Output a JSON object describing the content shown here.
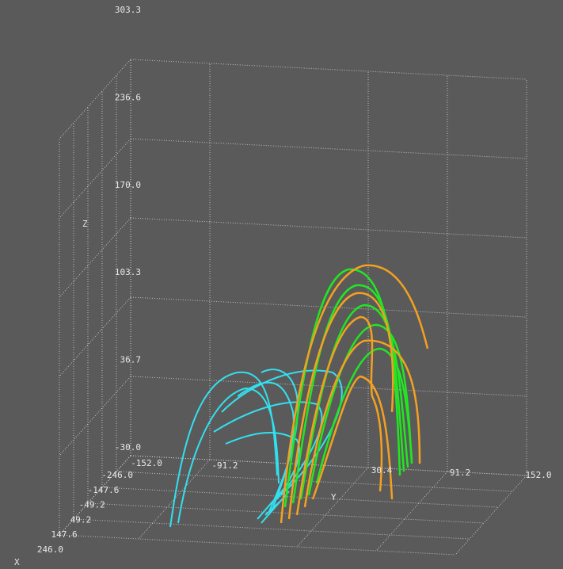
{
  "chart_data": {
    "type": "line3d",
    "xlabel": "X",
    "ylabel": "Y",
    "zlabel": "Z",
    "xlim": [
      -246.0,
      246.0
    ],
    "xticks": [
      {
        "value": -246.0,
        "label": "-246.0"
      },
      {
        "value": -147.6,
        "label": "-147.6"
      },
      {
        "value": -49.2,
        "label": "-49.2"
      },
      {
        "value": 49.2,
        "label": "49.2"
      },
      {
        "value": 147.6,
        "label": "147.6"
      },
      {
        "value": 246.0,
        "label": "246.0"
      }
    ],
    "ylim": [
      -152.0,
      152.0
    ],
    "yticks": [
      {
        "value": -152.0,
        "label": "-152.0"
      },
      {
        "value": -91.2,
        "label": "-91.2"
      },
      {
        "value": 30.4,
        "label": "30.4"
      },
      {
        "value": 91.2,
        "label": "91.2"
      },
      {
        "value": 152.0,
        "label": "152.0"
      }
    ],
    "zlim": [
      -30.0,
      303.3
    ],
    "zticks": [
      {
        "value": -30.0,
        "label": "-30.0"
      },
      {
        "value": 36.7,
        "label": "36.7"
      },
      {
        "value": 103.3,
        "label": "103.3"
      },
      {
        "value": 170.0,
        "label": "170.0"
      },
      {
        "value": 236.6,
        "label": "236.6"
      },
      {
        "value": 303.3,
        "label": "303.3"
      }
    ],
    "grid": true
  }
}
